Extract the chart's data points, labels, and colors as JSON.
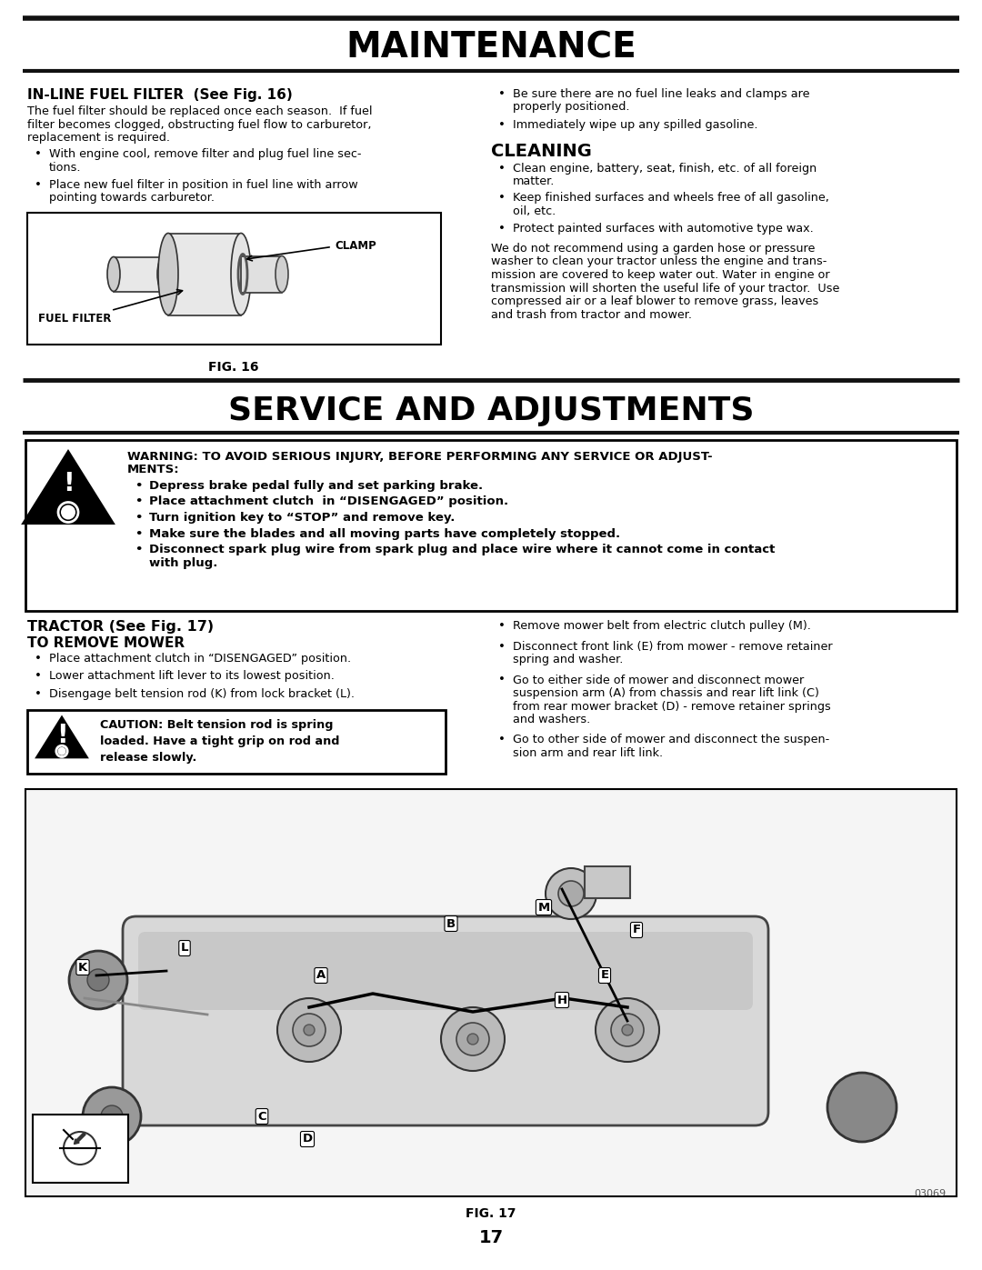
{
  "title_maintenance": "MAINTENANCE",
  "title_service": "SERVICE AND ADJUSTMENTS",
  "inline_fuel_header": "IN-LINE FUEL FILTER  (See Fig. 16)",
  "inline_fuel_body": "The fuel filter should be replaced once each season.  If fuel\nfilter becomes clogged, obstructing fuel flow to carburetor,\nreplacement is required.",
  "inline_fuel_bullets": [
    "With engine cool, remove filter and plug fuel line sec-\ntions.",
    "Place new fuel filter in position in fuel line with arrow\npointing towards carburetor."
  ],
  "right_col_bullets_top": [
    "Be sure there are no fuel line leaks and clamps are\nproperly positioned.",
    "Immediately wipe up any spilled gasoline."
  ],
  "cleaning_header": "CLEANING",
  "cleaning_bullets": [
    "Clean engine, battery, seat, finish, etc. of all foreign\nmatter.",
    "Keep finished surfaces and wheels free of all gasoline,\noil, etc.",
    "Protect painted surfaces with automotive type wax."
  ],
  "cleaning_body": "We do not recommend using a garden hose or pressure\nwasher to clean your tractor unless the engine and trans-\nmission are covered to keep water out. Water in engine or\ntransmission will shorten the useful life of your tractor.  Use\ncompressed air or a leaf blower to remove grass, leaves\nand trash from tractor and mower.",
  "fig16_label": "FIG. 16",
  "warning_text_line1": "WARNING: TO AVOID SERIOUS INJURY, BEFORE PERFORMING ANY SERVICE OR ADJUST-",
  "warning_text_line2": "MENTS:",
  "warning_bullets": [
    "Depress brake pedal fully and set parking brake.",
    "Place attachment clutch  in “DISENGAGED” position.",
    "Turn ignition key to “STOP” and remove key.",
    "Make sure the blades and all moving parts have completely stopped.",
    "Disconnect spark plug wire from spark plug and place wire where it cannot come in contact\nwith plug."
  ],
  "tractor_header": "TRACTOR (See Fig. 17)",
  "remove_mower_header": "TO REMOVE MOWER",
  "tractor_bullets_left": [
    "Place attachment clutch in “DISENGAGED” position.",
    "Lower attachment lift lever to its lowest position.",
    "Disengage belt tension rod (K) from lock bracket (L)."
  ],
  "caution_text": "CAUTION: Belt tension rod is spring\nloaded. Have a tight grip on rod and\nrelease slowly.",
  "tractor_bullets_right": [
    "Remove mower belt from electric clutch pulley (M).",
    "Disconnect front link (E) from mower - remove retainer\nspring and washer.",
    "Go to either side of mower and disconnect mower\nsuspension arm (A) from chassis and rear lift link (C)\nfrom rear mower bracket (D) - remove retainer springs\nand washers.",
    "Go to other side of mower and disconnect the suspen-\nsion arm and rear lift link."
  ],
  "fig17_label": "FIG. 17",
  "page_number": "17",
  "part_number": "03069",
  "bg_color": "#ffffff",
  "text_color": "#000000"
}
